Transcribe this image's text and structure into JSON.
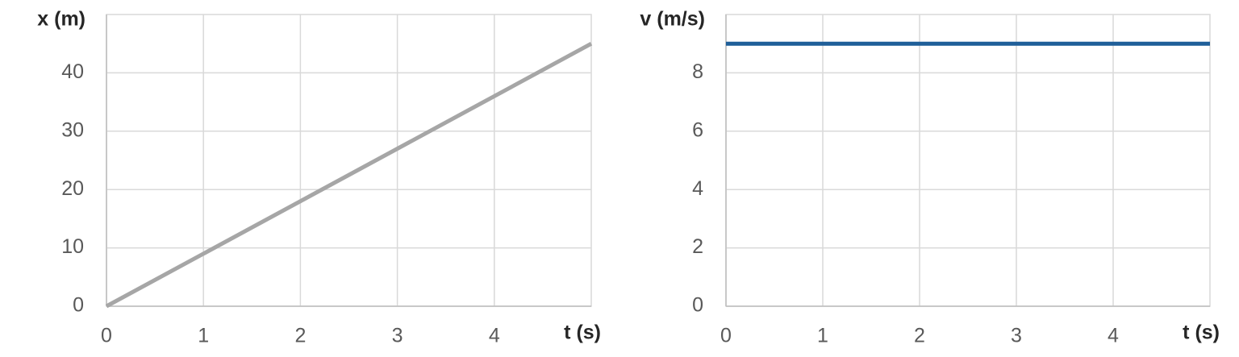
{
  "chart_data": [
    {
      "type": "line",
      "y_label": "x (m)",
      "x_label": "t (s)",
      "x": [
        0,
        5
      ],
      "values": [
        0,
        45
      ],
      "color": "#a6a6a6",
      "xlim": [
        0,
        5
      ],
      "xticks": [
        0,
        1,
        2,
        3,
        4
      ],
      "ylim": [
        0,
        50
      ],
      "yticks": [
        0,
        10,
        20,
        30,
        40
      ],
      "grid": true
    },
    {
      "type": "line",
      "y_label": "v (m/s)",
      "x_label": "t (s)",
      "x": [
        0,
        5
      ],
      "values": [
        9,
        9
      ],
      "color": "#1f5f99",
      "xlim": [
        0,
        5
      ],
      "xticks": [
        0,
        1,
        2,
        3,
        4
      ],
      "ylim": [
        0,
        10
      ],
      "yticks": [
        0,
        2,
        4,
        6,
        8
      ],
      "grid": true
    }
  ]
}
